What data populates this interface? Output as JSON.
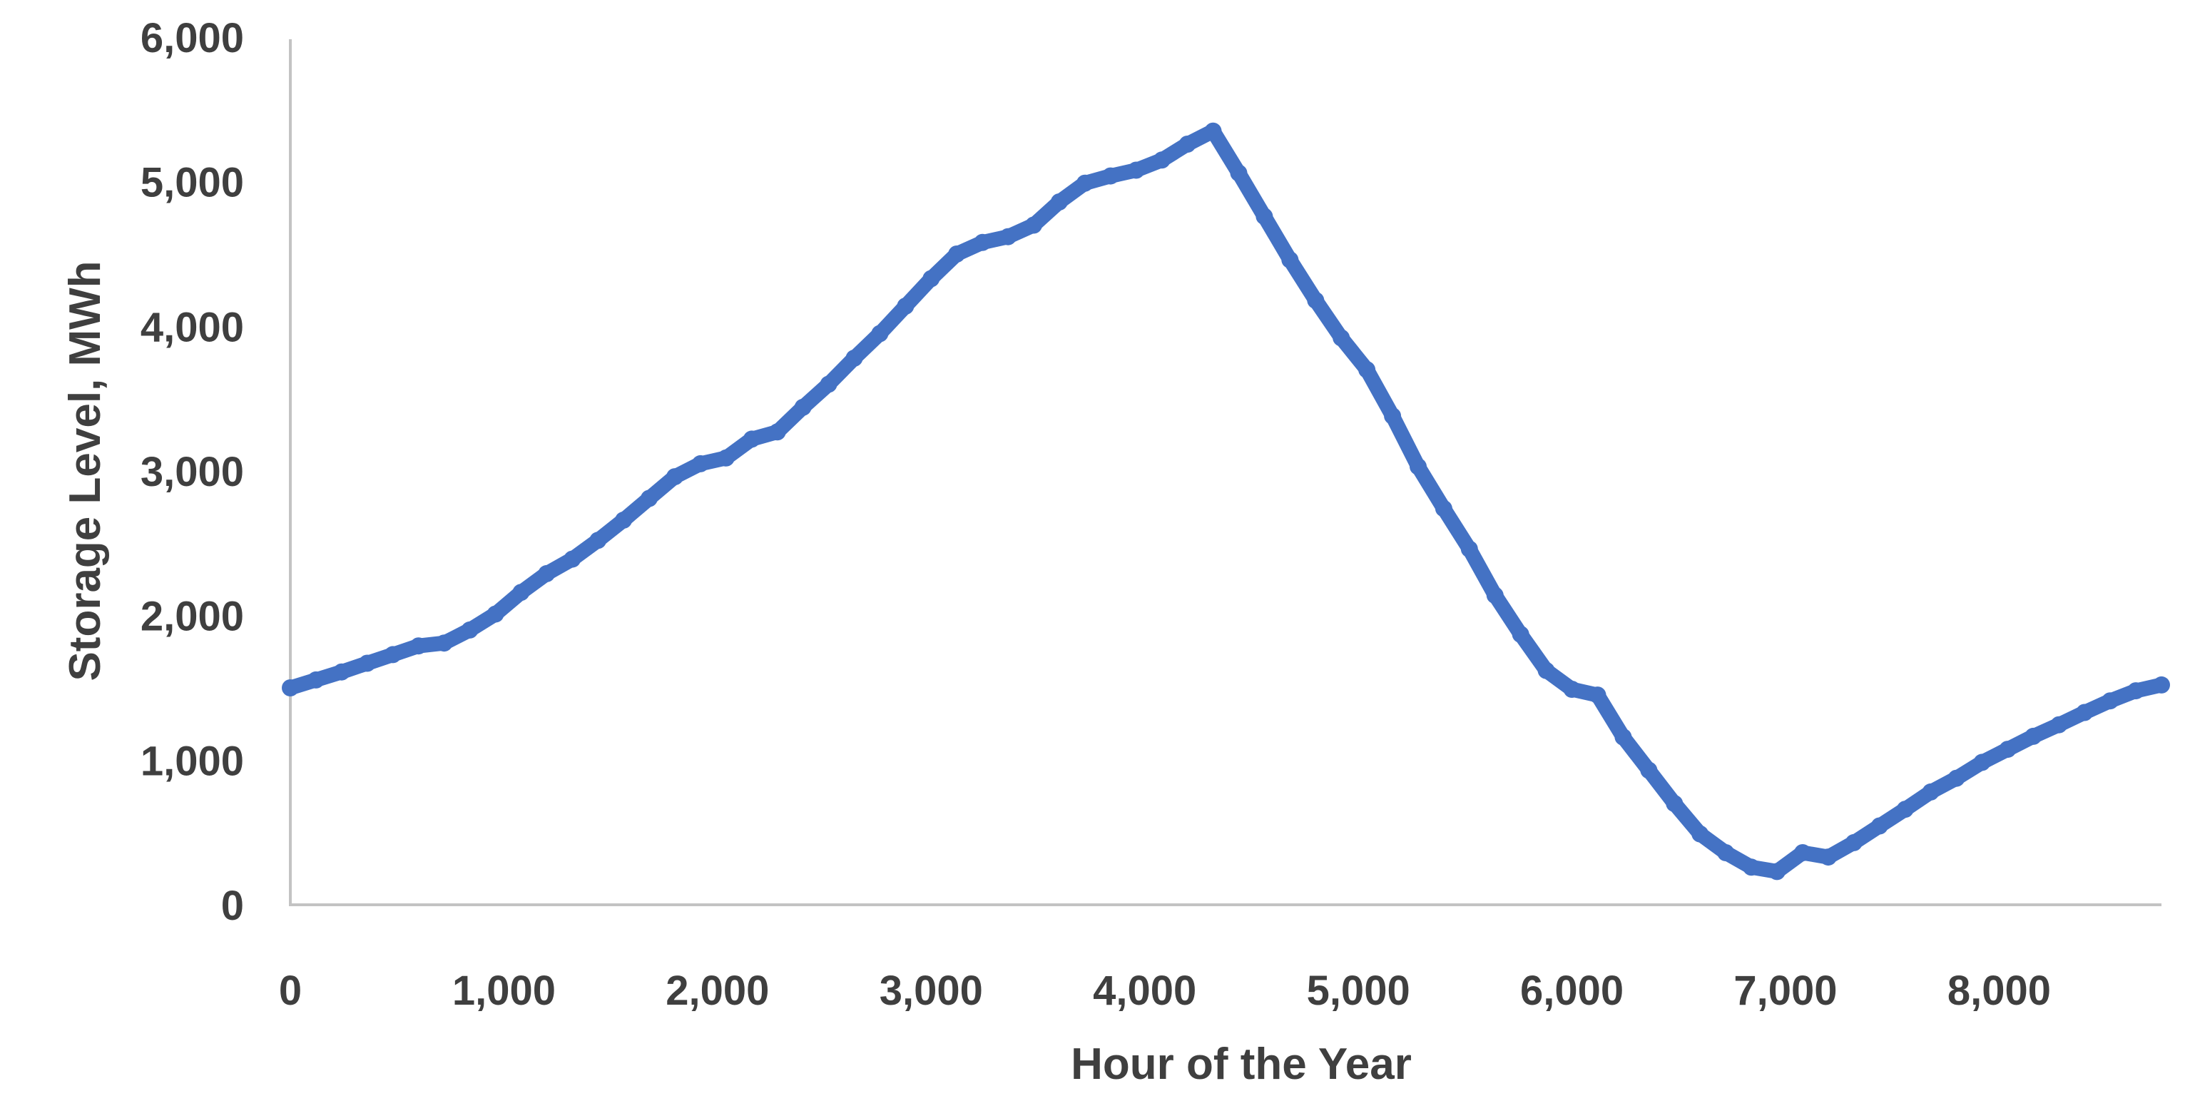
{
  "chart_data": {
    "type": "line",
    "title": "",
    "xlabel": "Hour of the Year",
    "ylabel": "Storage Level, MWh",
    "xlim": [
      0,
      8760
    ],
    "ylim": [
      0,
      6000
    ],
    "grid": false,
    "legend": false,
    "axis_color": "#c3c3c3",
    "text_color": "#3f3f3f",
    "x_ticks": [
      {
        "value": 0,
        "label": "0"
      },
      {
        "value": 1000,
        "label": "1,000"
      },
      {
        "value": 2000,
        "label": "2,000"
      },
      {
        "value": 3000,
        "label": "3,000"
      },
      {
        "value": 4000,
        "label": "4,000"
      },
      {
        "value": 5000,
        "label": "5,000"
      },
      {
        "value": 6000,
        "label": "6,000"
      },
      {
        "value": 7000,
        "label": "7,000"
      },
      {
        "value": 8000,
        "label": "8,000"
      }
    ],
    "y_ticks": [
      {
        "value": 0,
        "label": "0"
      },
      {
        "value": 1000,
        "label": "1,000"
      },
      {
        "value": 2000,
        "label": "2,000"
      },
      {
        "value": 3000,
        "label": "3,000"
      },
      {
        "value": 4000,
        "label": "4,000"
      },
      {
        "value": 5000,
        "label": "5,000"
      },
      {
        "value": 6000,
        "label": "6,000"
      }
    ],
    "series": [
      {
        "name": "Storage Level",
        "color": "#4472C4",
        "points": [
          [
            0,
            1500
          ],
          [
            120,
            1555
          ],
          [
            240,
            1610
          ],
          [
            360,
            1670
          ],
          [
            480,
            1730
          ],
          [
            600,
            1790
          ],
          [
            720,
            1810
          ],
          [
            840,
            1900
          ],
          [
            960,
            2010
          ],
          [
            1080,
            2160
          ],
          [
            1200,
            2290
          ],
          [
            1320,
            2390
          ],
          [
            1440,
            2520
          ],
          [
            1560,
            2660
          ],
          [
            1680,
            2810
          ],
          [
            1800,
            2960
          ],
          [
            1920,
            3050
          ],
          [
            2040,
            3090
          ],
          [
            2160,
            3220
          ],
          [
            2280,
            3270
          ],
          [
            2400,
            3440
          ],
          [
            2520,
            3600
          ],
          [
            2640,
            3780
          ],
          [
            2760,
            3950
          ],
          [
            2880,
            4140
          ],
          [
            3000,
            4330
          ],
          [
            3120,
            4500
          ],
          [
            3240,
            4580
          ],
          [
            3360,
            4620
          ],
          [
            3480,
            4700
          ],
          [
            3600,
            4860
          ],
          [
            3720,
            4990
          ],
          [
            3840,
            5040
          ],
          [
            3960,
            5080
          ],
          [
            4080,
            5150
          ],
          [
            4200,
            5260
          ],
          [
            4320,
            5350
          ],
          [
            4440,
            5060
          ],
          [
            4560,
            4760
          ],
          [
            4680,
            4460
          ],
          [
            4800,
            4180
          ],
          [
            4920,
            3920
          ],
          [
            5040,
            3700
          ],
          [
            5160,
            3380
          ],
          [
            5280,
            3030
          ],
          [
            5400,
            2740
          ],
          [
            5520,
            2460
          ],
          [
            5640,
            2140
          ],
          [
            5760,
            1870
          ],
          [
            5880,
            1620
          ],
          [
            6000,
            1490
          ],
          [
            6120,
            1450
          ],
          [
            6240,
            1160
          ],
          [
            6360,
            930
          ],
          [
            6480,
            700
          ],
          [
            6600,
            490
          ],
          [
            6720,
            360
          ],
          [
            6840,
            260
          ],
          [
            6960,
            230
          ],
          [
            7080,
            360
          ],
          [
            7200,
            330
          ],
          [
            7320,
            430
          ],
          [
            7440,
            545
          ],
          [
            7560,
            660
          ],
          [
            7680,
            780
          ],
          [
            7800,
            875
          ],
          [
            7920,
            985
          ],
          [
            8040,
            1075
          ],
          [
            8160,
            1165
          ],
          [
            8280,
            1245
          ],
          [
            8400,
            1330
          ],
          [
            8520,
            1410
          ],
          [
            8640,
            1480
          ],
          [
            8760,
            1520
          ]
        ]
      }
    ]
  }
}
